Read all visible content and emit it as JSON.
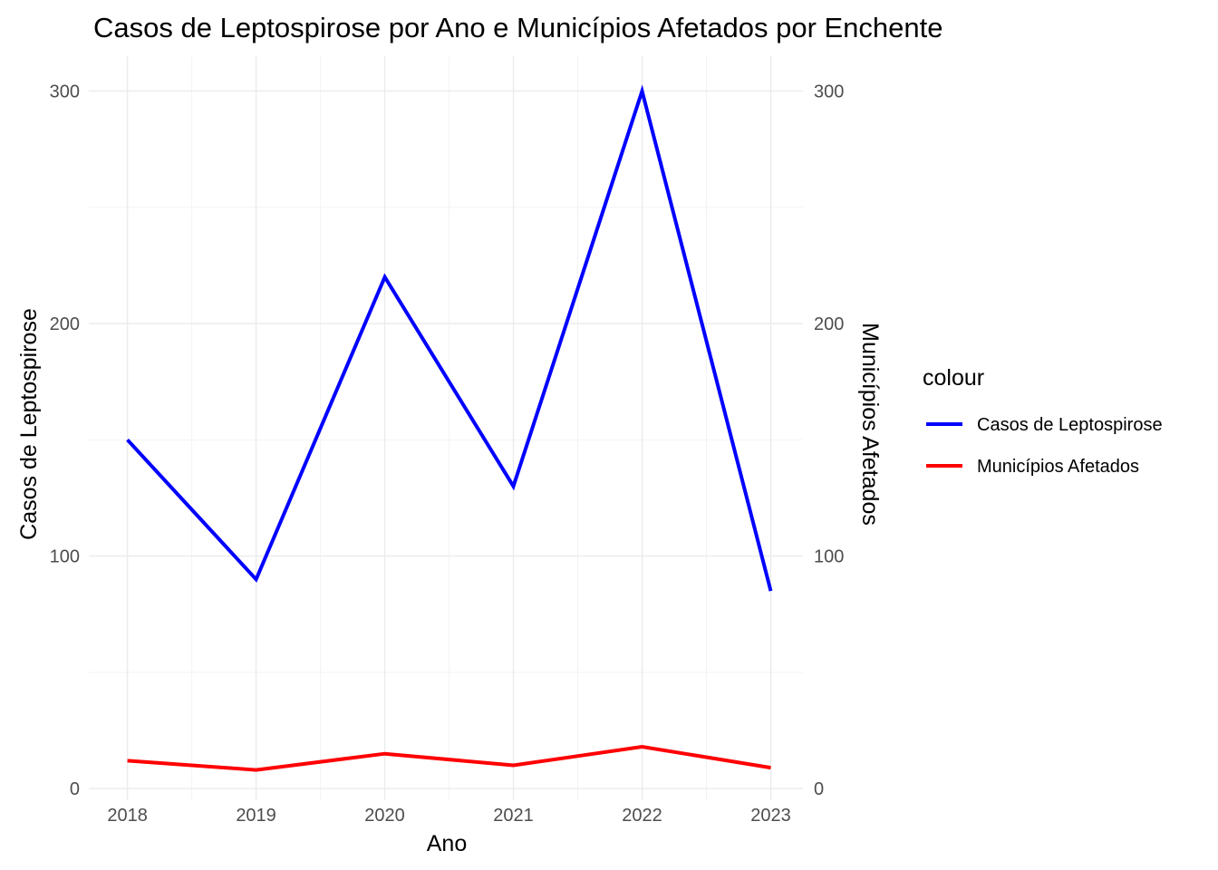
{
  "chart_data": {
    "type": "line",
    "title": "Casos de Leptospirose por Ano e Municípios Afetados por Enchente",
    "xlabel": "Ano",
    "ylabel": "Casos de Leptospirose",
    "ylabel_right": "Municípios Afetados",
    "x": [
      2018,
      2019,
      2020,
      2021,
      2022,
      2023
    ],
    "x_ticks": [
      "2018",
      "2019",
      "2020",
      "2021",
      "2022",
      "2023"
    ],
    "y_ticks": [
      "0",
      "100",
      "200",
      "300"
    ],
    "y_ticks_right": [
      "0",
      "100",
      "200",
      "300"
    ],
    "xlim": [
      2017.7,
      2023.25
    ],
    "ylim": [
      -5,
      315
    ],
    "grid": true,
    "legend": {
      "title": "colour",
      "position": "right",
      "entries": [
        "Casos de Leptospirose",
        "Municípios Afetados"
      ]
    },
    "series": [
      {
        "name": "Casos de Leptospirose",
        "color": "#0000ff",
        "values": [
          150,
          90,
          220,
          130,
          300,
          85
        ]
      },
      {
        "name": "Municípios Afetados",
        "color": "#ff0000",
        "values": [
          12,
          8,
          15,
          10,
          18,
          9
        ]
      }
    ]
  }
}
